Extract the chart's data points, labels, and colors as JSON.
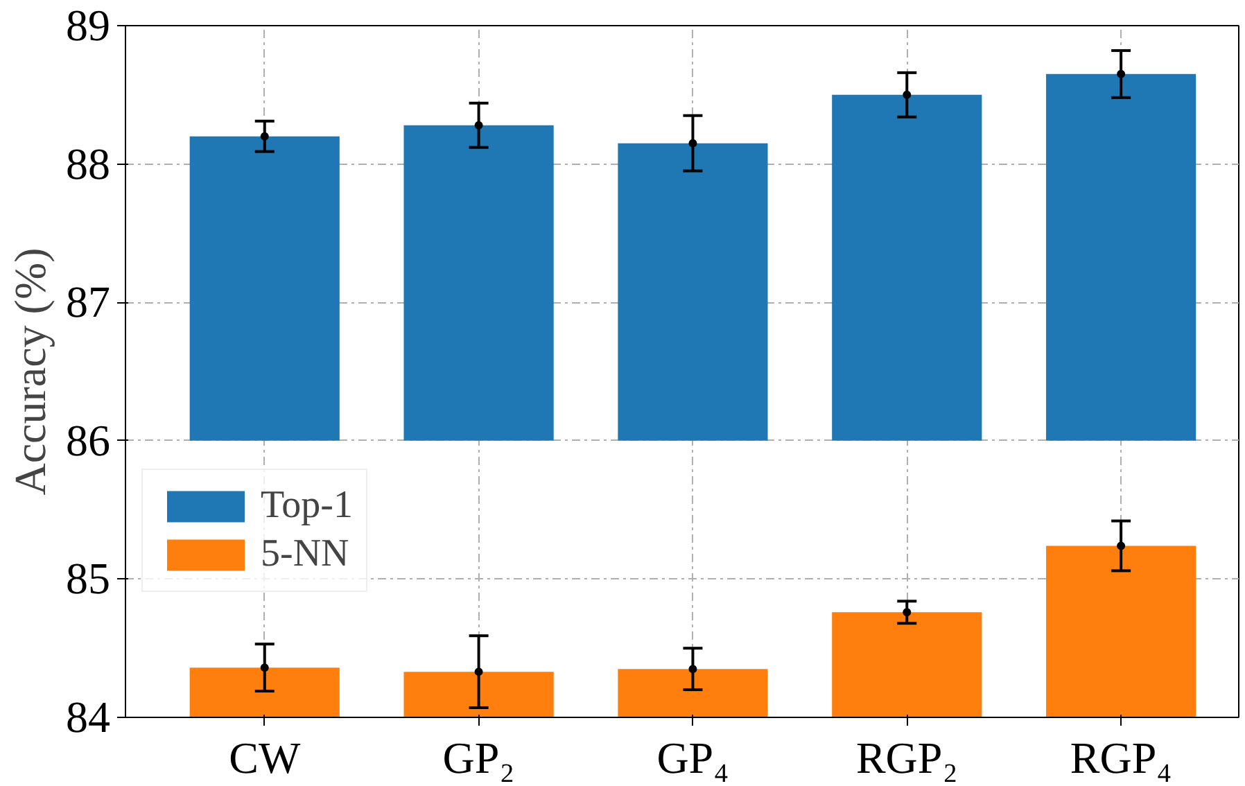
{
  "chart_data": {
    "type": "bar",
    "ylabel": "Accuracy (%)",
    "categories": [
      "CW",
      "GP₂",
      "GP₄",
      "RGP₂",
      "RGP₄"
    ],
    "series": [
      {
        "name": "Top-1",
        "color": "#1f77b4",
        "base": [
          86,
          86,
          86,
          86,
          86
        ],
        "values": [
          2.2,
          2.28,
          2.15,
          2.5,
          2.65
        ]
      },
      {
        "name": "5-NN",
        "color": "#ff7f0e",
        "base": [
          84,
          84,
          84,
          84,
          84
        ],
        "values": [
          0.36,
          0.33,
          0.35,
          0.76,
          1.24
        ]
      },
      {
        "type": "scatter",
        "color": "#000000",
        "x": [
          "CW",
          "GP₂",
          "GP₄",
          "RGP₂",
          "RGP₄"
        ],
        "values": [
          88.2,
          88.28,
          88.15,
          88.5,
          88.65
        ],
        "errors": [
          0.11,
          0.16,
          0.2,
          0.16,
          0.17
        ]
      },
      {
        "type": "scatter",
        "color": "#000000",
        "x": [
          "CW",
          "GP₂",
          "GP₄",
          "RGP₂",
          "RGP₄"
        ],
        "values": [
          84.36,
          84.33,
          84.35,
          84.76,
          85.24
        ],
        "errors": [
          0.17,
          0.26,
          0.15,
          0.08,
          0.18
        ]
      }
    ],
    "ylim": [
      84,
      89
    ],
    "yticks": [
      84,
      85,
      86,
      87,
      88,
      89
    ],
    "grid": true,
    "legend": "left",
    "marker": "circle"
  }
}
